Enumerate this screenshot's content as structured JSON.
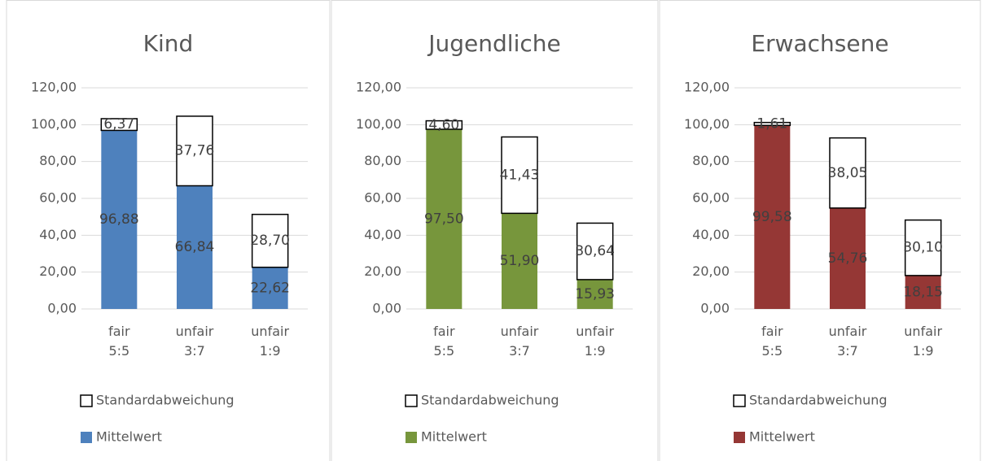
{
  "chart_data": [
    {
      "type": "bar",
      "stacked": true,
      "title": "Kind",
      "categories": [
        "fair 5:5",
        "unfair 3:7",
        "unfair 1:9"
      ],
      "series": [
        {
          "name": "Standardabweichung",
          "color": "#ffffff",
          "values": [
            6.37,
            37.76,
            28.7
          ],
          "value_labels": [
            "6,37",
            "37,76",
            "28,70"
          ]
        },
        {
          "name": "Mittelwert",
          "color": "#4e81bd",
          "values": [
            96.88,
            66.84,
            22.62
          ],
          "value_labels": [
            "96,88",
            "66,84",
            "22,62"
          ]
        }
      ],
      "ylim": [
        0,
        120
      ],
      "yticks": [
        {
          "value": 0,
          "label": "0,00"
        },
        {
          "value": 20,
          "label": "20,00"
        },
        {
          "value": 40,
          "label": "40,00"
        },
        {
          "value": 60,
          "label": "60,00"
        },
        {
          "value": 80,
          "label": "80,00"
        },
        {
          "value": 100,
          "label": "100,00"
        },
        {
          "value": 120,
          "label": "120,00"
        }
      ],
      "grid": true
    },
    {
      "type": "bar",
      "stacked": true,
      "title": "Jugendliche",
      "categories": [
        "fair 5:5",
        "unfair 3:7",
        "unfair 1:9"
      ],
      "series": [
        {
          "name": "Standardabweichung",
          "color": "#ffffff",
          "values": [
            4.6,
            41.43,
            30.64
          ],
          "value_labels": [
            "4,60",
            "41,43",
            "30,64"
          ]
        },
        {
          "name": "Mittelwert",
          "color": "#77963c",
          "values": [
            97.5,
            51.9,
            15.93
          ],
          "value_labels": [
            "97,50",
            "51,90",
            "15,93"
          ]
        }
      ],
      "ylim": [
        0,
        120
      ],
      "yticks": [
        {
          "value": 0,
          "label": "0,00"
        },
        {
          "value": 20,
          "label": "20,00"
        },
        {
          "value": 40,
          "label": "40,00"
        },
        {
          "value": 60,
          "label": "60,00"
        },
        {
          "value": 80,
          "label": "80,00"
        },
        {
          "value": 100,
          "label": "100,00"
        },
        {
          "value": 120,
          "label": "120,00"
        }
      ],
      "grid": true
    },
    {
      "type": "bar",
      "stacked": true,
      "title": "Erwachsene",
      "categories": [
        "fair 5:5",
        "unfair 3:7",
        "unfair 1:9"
      ],
      "series": [
        {
          "name": "Standardabweichung",
          "color": "#ffffff",
          "values": [
            1.61,
            38.05,
            30.1
          ],
          "value_labels": [
            "1,61",
            "38,05",
            "30,10"
          ]
        },
        {
          "name": "Mittelwert",
          "color": "#953735",
          "values": [
            99.58,
            54.76,
            18.15
          ],
          "value_labels": [
            "99,58",
            "54,76",
            "18,15"
          ]
        }
      ],
      "ylim": [
        0,
        120
      ],
      "yticks": [
        {
          "value": 0,
          "label": "0,00"
        },
        {
          "value": 20,
          "label": "20,00"
        },
        {
          "value": 40,
          "label": "40,00"
        },
        {
          "value": 60,
          "label": "60,00"
        },
        {
          "value": 80,
          "label": "80,00"
        },
        {
          "value": 100,
          "label": "100,00"
        },
        {
          "value": 120,
          "label": "120,00"
        }
      ],
      "grid": true
    }
  ]
}
